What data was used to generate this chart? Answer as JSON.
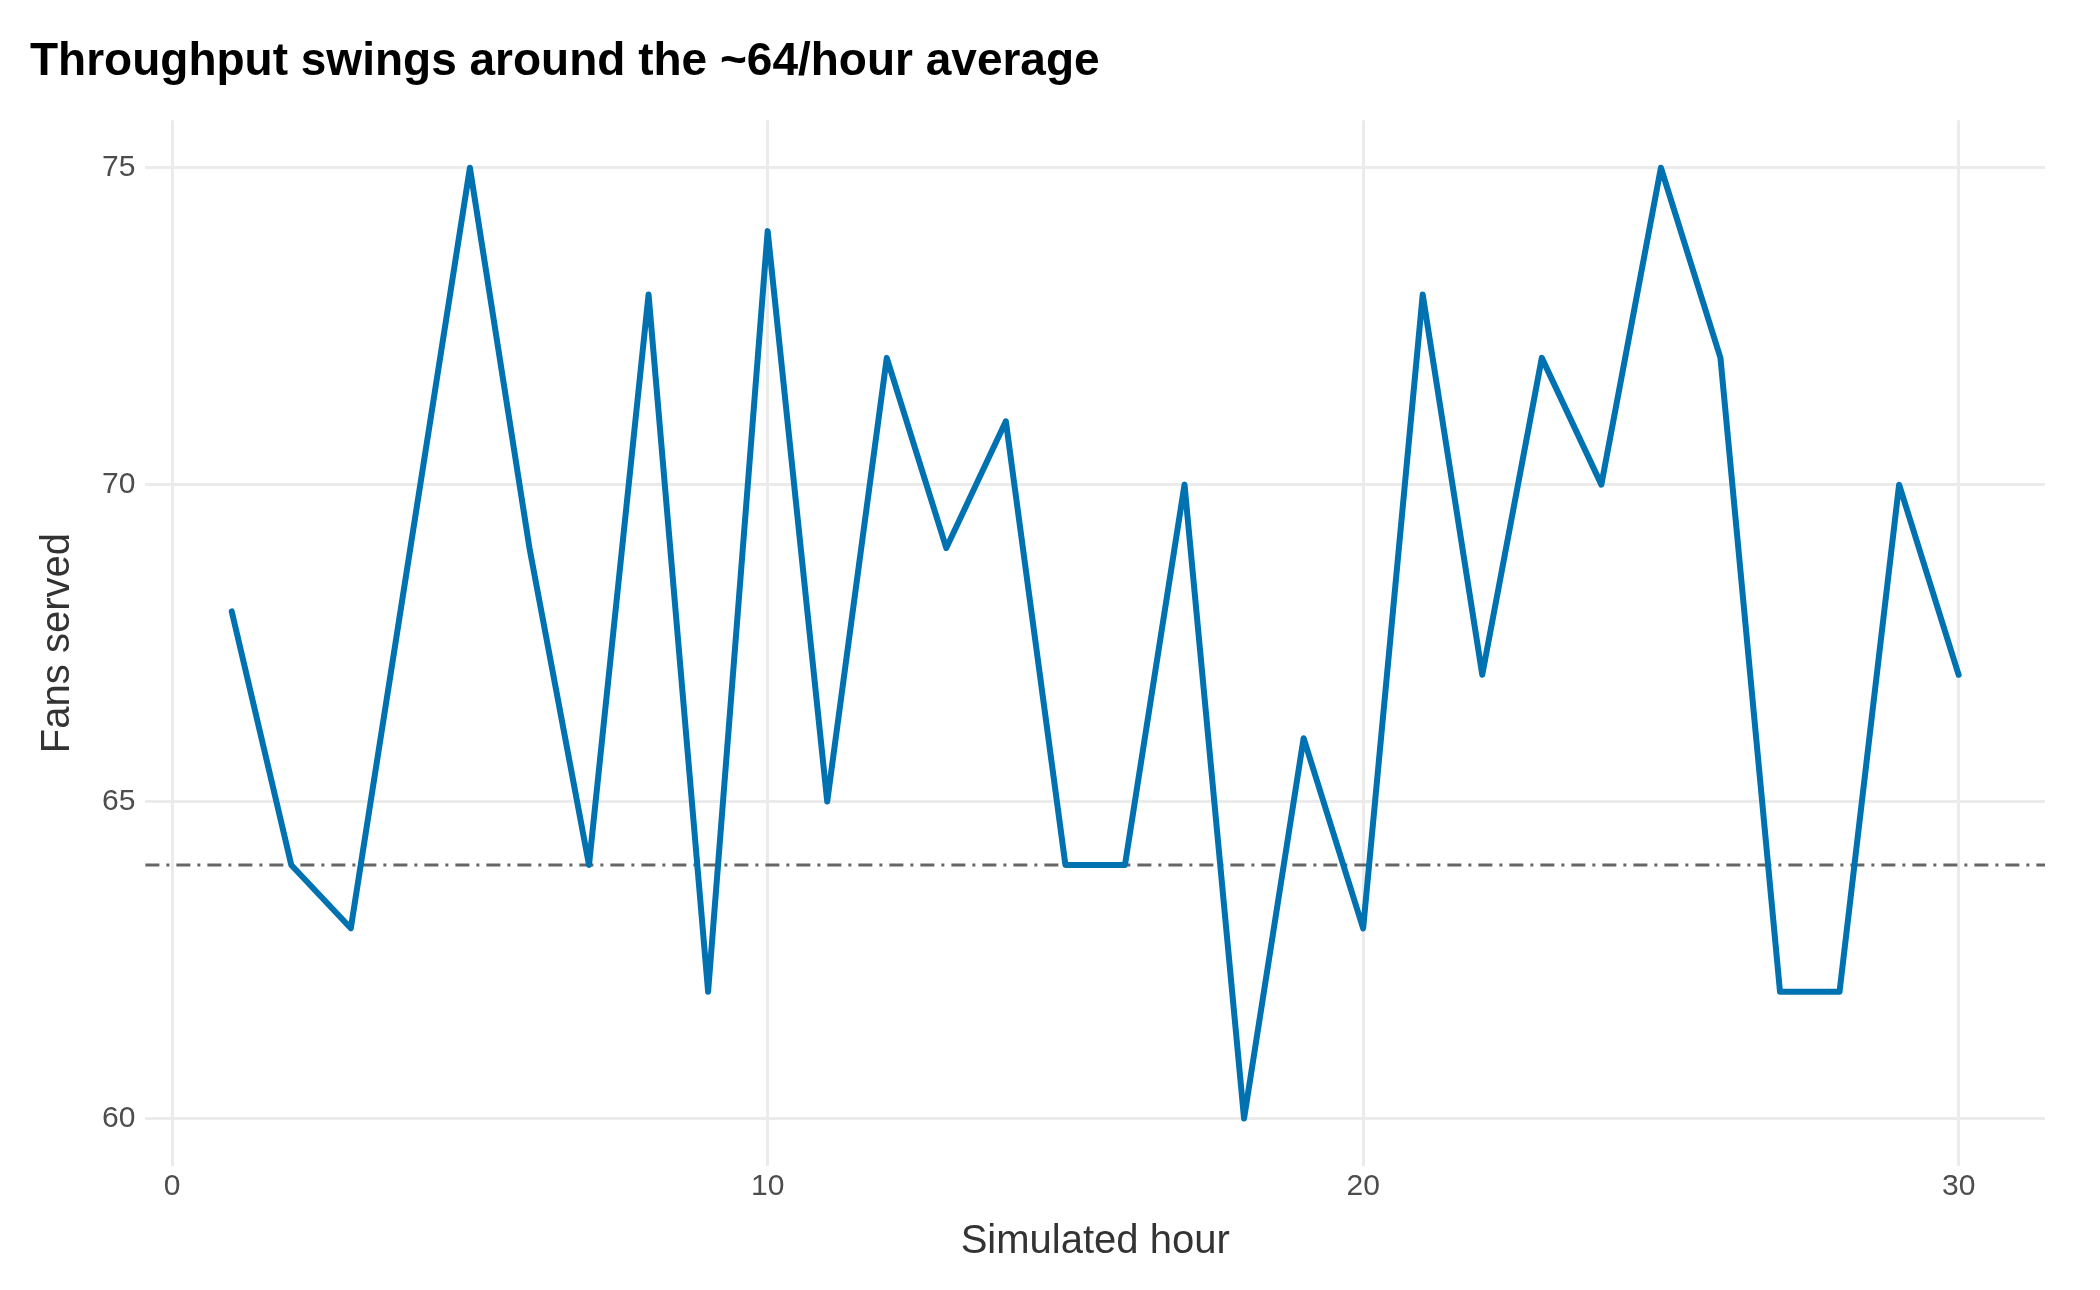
{
  "chart_data": {
    "type": "line",
    "title": "Throughput swings around the ~64/hour average",
    "xlabel": "Simulated hour",
    "ylabel": "Fans served",
    "x": [
      1,
      2,
      3,
      4,
      5,
      6,
      7,
      8,
      9,
      10,
      11,
      12,
      13,
      14,
      15,
      16,
      17,
      18,
      19,
      20,
      21,
      22,
      23,
      24,
      25,
      26,
      27,
      28,
      29,
      30
    ],
    "series": [
      {
        "color": "#0072b2",
        "values": [
          68,
          64,
          63,
          69,
          75,
          69,
          64,
          73,
          62,
          74,
          65,
          72,
          69,
          71,
          64,
          64,
          70,
          60,
          66,
          63,
          73,
          67,
          72,
          70,
          75,
          72,
          62,
          62,
          70,
          67
        ]
      }
    ],
    "xlim": [
      -0.45,
      31.45
    ],
    "ylim": [
      59.25,
      75.75
    ],
    "xticks": [
      0,
      10,
      20,
      30
    ],
    "yticks": [
      60,
      65,
      70,
      75
    ],
    "ref_lines": [
      {
        "axis": "y",
        "value": 64,
        "color": "#666666",
        "line_style": "dashed"
      }
    ],
    "grid": true,
    "legend": false,
    "marker": "none",
    "line_style": "solid"
  }
}
